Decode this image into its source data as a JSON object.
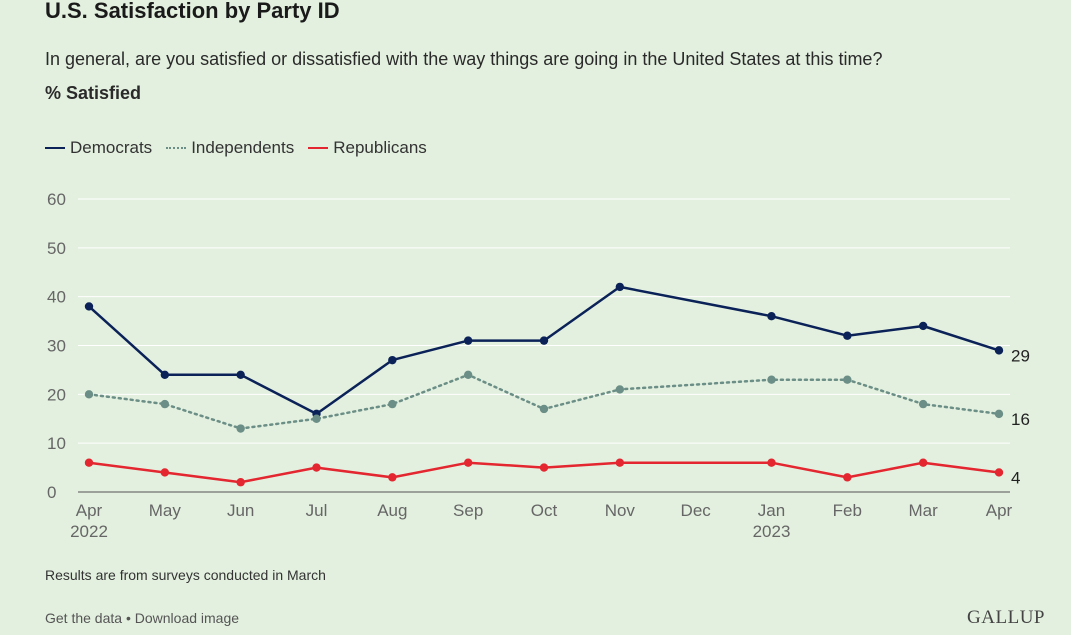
{
  "header": {
    "title": "U.S. Satisfaction by Party ID",
    "subtitle": "In general, are you satisfied or dissatisfied with the way things are going in the United States at this time?",
    "measure": "% Satisfied"
  },
  "footer": {
    "note": "Results are from surveys conducted in March",
    "get_data": "Get the data",
    "separator": "•",
    "download": "Download image",
    "brand": "GALLUP"
  },
  "colors": {
    "democrats": "#0b2258",
    "independents": "#6b8e86",
    "republicans": "#e3262f",
    "grid": "#ffffff",
    "axis_text": "#666666"
  },
  "chart_data": {
    "type": "line",
    "categories": [
      "Apr 2022",
      "May",
      "Jun",
      "Jul",
      "Aug",
      "Sep",
      "Oct",
      "Nov",
      "Dec",
      "Jan 2023",
      "Feb",
      "Mar",
      "Apr"
    ],
    "tick_labels": [
      [
        "Apr",
        "2022"
      ],
      [
        "May"
      ],
      [
        "Jun"
      ],
      [
        "Jul"
      ],
      [
        "Aug"
      ],
      [
        "Sep"
      ],
      [
        "Oct"
      ],
      [
        "Nov"
      ],
      [
        "Dec"
      ],
      [
        "Jan",
        "2023"
      ],
      [
        "Feb"
      ],
      [
        "Mar"
      ],
      [
        "Apr"
      ]
    ],
    "ylim": [
      0,
      60
    ],
    "yticks": [
      0,
      10,
      20,
      30,
      40,
      50,
      60
    ],
    "grid": true,
    "legend_position": "top-left",
    "series": [
      {
        "name": "Democrats",
        "style": "solid",
        "values": [
          38,
          24,
          24,
          16,
          27,
          31,
          31,
          42,
          null,
          36,
          32,
          34,
          29
        ],
        "end_label": "29"
      },
      {
        "name": "Independents",
        "style": "dotted",
        "values": [
          20,
          18,
          13,
          15,
          18,
          24,
          17,
          21,
          null,
          23,
          23,
          18,
          16
        ],
        "end_label": "16"
      },
      {
        "name": "Republicans",
        "style": "solid",
        "values": [
          6,
          4,
          2,
          5,
          3,
          6,
          5,
          6,
          null,
          6,
          3,
          6,
          4
        ],
        "end_label": "4"
      }
    ]
  }
}
